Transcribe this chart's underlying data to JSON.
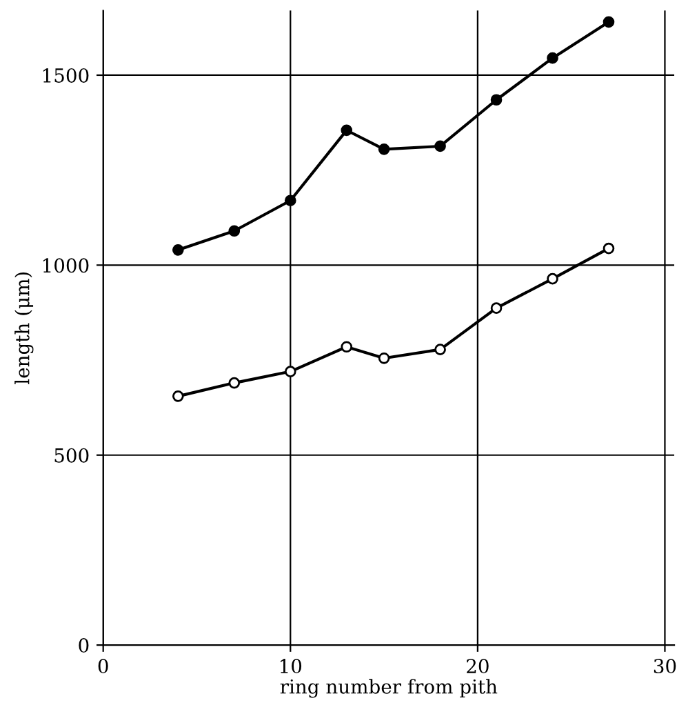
{
  "chart_data": {
    "type": "line",
    "xlabel": "ring number from pith",
    "ylabel": "length (μm)",
    "x": [
      4,
      7,
      10,
      13,
      15,
      18,
      21,
      24,
      27
    ],
    "series": [
      {
        "color": "#000000",
        "marker": "circle",
        "values": [
          1040,
          1090,
          1170,
          1355,
          1305,
          1313,
          1435,
          1545,
          1640
        ]
      },
      {
        "color": "#000000",
        "marker": "circle",
        "values": [
          655,
          690,
          720,
          785,
          755,
          778,
          887,
          964,
          1044
        ]
      }
    ],
    "xlim": [
      0,
      30.5
    ],
    "ylim": [
      0,
      1670
    ],
    "xticks": [
      0,
      10,
      20,
      30
    ],
    "yticks": [
      0,
      500,
      1000,
      1500
    ],
    "grid": true,
    "line_style": "solid"
  }
}
